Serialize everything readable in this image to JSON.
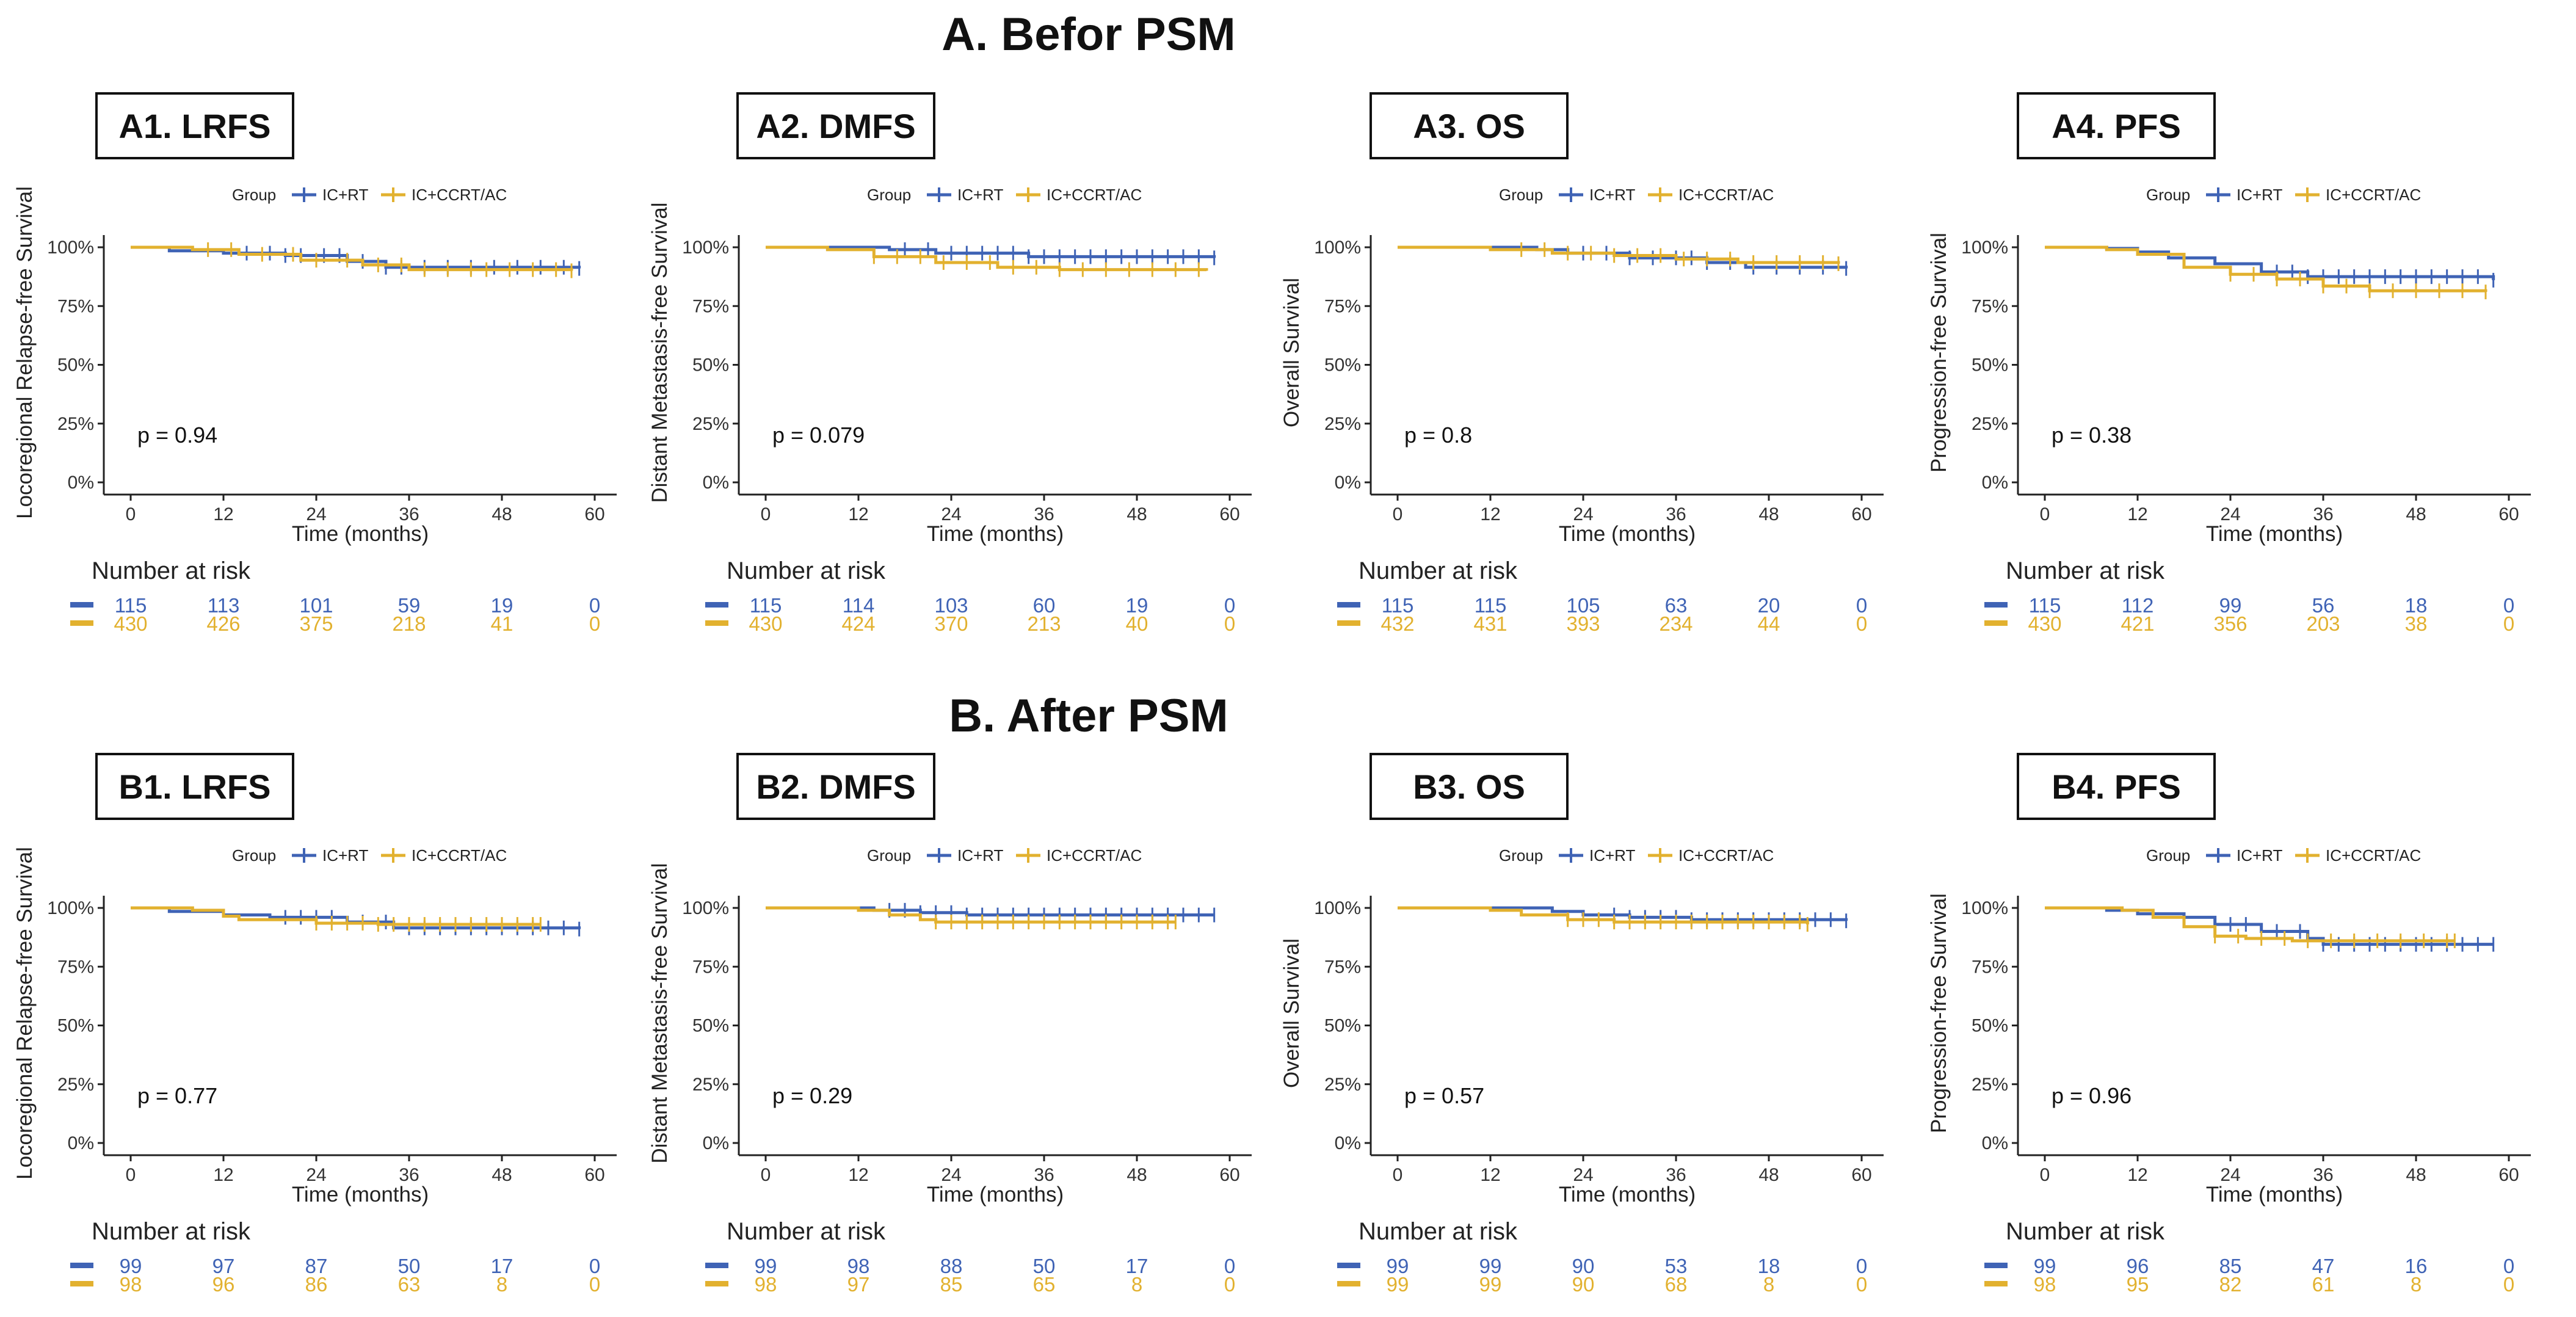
{
  "colors": {
    "ic_rt": "#3f63b5",
    "ic_ccrt_ac": "#e2b12f"
  },
  "sections": {
    "A": "A. Befor PSM",
    "B": "B. After PSM"
  },
  "legend": {
    "title": "Group",
    "series1": "IC+RT",
    "series2": "IC+CCRT/AC"
  },
  "risk_title": "Number at risk",
  "xlabel": "Time (months)",
  "x_ticks": [
    "0",
    "12",
    "24",
    "36",
    "48",
    "60"
  ],
  "y_ticks": [
    "0%",
    "25%",
    "50%",
    "75%",
    "100%"
  ],
  "chart_data": [
    {
      "type": "line",
      "panel": "A1. LRFS",
      "ylabel": "Locoregional Relapse-free Survival",
      "pvalue": "p = 0.94",
      "xlim": [
        0,
        60
      ],
      "ylim": [
        0,
        1
      ],
      "series": [
        {
          "name": "IC+RT",
          "points": [
            [
              0,
              1
            ],
            [
              5,
              0.985
            ],
            [
              12,
              0.975
            ],
            [
              20,
              0.965
            ],
            [
              28,
              0.94
            ],
            [
              33,
              0.915
            ],
            [
              58,
              0.91
            ]
          ],
          "censor": [
            15,
            18,
            20,
            22,
            25,
            27,
            30,
            33,
            35,
            38,
            41,
            44,
            47,
            50,
            53,
            56,
            58
          ]
        },
        {
          "name": "IC+CCRT/AC",
          "points": [
            [
              0,
              1
            ],
            [
              8,
              0.99
            ],
            [
              14,
              0.97
            ],
            [
              22,
              0.945
            ],
            [
              30,
              0.925
            ],
            [
              36,
              0.905
            ],
            [
              57,
              0.9
            ]
          ],
          "censor": [
            10,
            13,
            17,
            21,
            24,
            28,
            32,
            35,
            38,
            41,
            44,
            46,
            49,
            52,
            55,
            57
          ]
        }
      ],
      "risk": {
        "IC+RT": [
          "115",
          "113",
          "101",
          "59",
          "19",
          "0"
        ],
        "IC+CCRT/AC": [
          "430",
          "426",
          "375",
          "218",
          "41",
          "0"
        ]
      }
    },
    {
      "type": "line",
      "panel": "A2. DMFS",
      "ylabel": "Distant Metastasis-free Survival",
      "pvalue": "p = 0.079",
      "xlim": [
        0,
        60
      ],
      "ylim": [
        0,
        1
      ],
      "series": [
        {
          "name": "IC+RT",
          "points": [
            [
              0,
              1
            ],
            [
              10,
              1
            ],
            [
              16,
              0.99
            ],
            [
              22,
              0.975
            ],
            [
              34,
              0.96
            ],
            [
              58,
              0.955
            ]
          ],
          "censor": [
            18,
            21,
            24,
            26,
            28,
            30,
            32,
            34,
            36,
            38,
            40,
            42,
            44,
            46,
            48,
            50,
            52,
            54,
            56,
            58
          ]
        },
        {
          "name": "IC+CCRT/AC",
          "points": [
            [
              0,
              1
            ],
            [
              8,
              0.99
            ],
            [
              14,
              0.96
            ],
            [
              22,
              0.935
            ],
            [
              30,
              0.915
            ],
            [
              38,
              0.905
            ],
            [
              57,
              0.9
            ]
          ],
          "censor": [
            14,
            17,
            20,
            23,
            26,
            29,
            32,
            35,
            38,
            41,
            44,
            47,
            50,
            53,
            56
          ]
        }
      ],
      "risk": {
        "IC+RT": [
          "115",
          "114",
          "103",
          "60",
          "19",
          "0"
        ],
        "IC+CCRT/AC": [
          "430",
          "424",
          "370",
          "213",
          "40",
          "0"
        ]
      }
    },
    {
      "type": "line",
      "panel": "A3. OS",
      "ylabel": "Overall Survival",
      "pvalue": "p = 0.8",
      "xlim": [
        0,
        60
      ],
      "ylim": [
        0,
        1
      ],
      "series": [
        {
          "name": "IC+RT",
          "points": [
            [
              0,
              1
            ],
            [
              18,
              0.99
            ],
            [
              22,
              0.975
            ],
            [
              30,
              0.955
            ],
            [
              40,
              0.935
            ],
            [
              45,
              0.915
            ],
            [
              58,
              0.91
            ]
          ],
          "censor": [
            24,
            27,
            30,
            33,
            36,
            38,
            40,
            43,
            46,
            49,
            52,
            55,
            58
          ]
        },
        {
          "name": "IC+CCRT/AC",
          "points": [
            [
              0,
              1
            ],
            [
              12,
              0.99
            ],
            [
              20,
              0.975
            ],
            [
              28,
              0.965
            ],
            [
              36,
              0.95
            ],
            [
              44,
              0.935
            ],
            [
              57,
              0.93
            ]
          ],
          "censor": [
            16,
            19,
            22,
            25,
            28,
            31,
            34,
            37,
            40,
            43,
            46,
            49,
            52,
            55,
            57
          ]
        }
      ],
      "risk": {
        "IC+RT": [
          "115",
          "115",
          "105",
          "63",
          "20",
          "0"
        ],
        "IC+CCRT/AC": [
          "432",
          "431",
          "393",
          "234",
          "44",
          "0"
        ]
      }
    },
    {
      "type": "line",
      "panel": "A4. PFS",
      "ylabel": "Progression-free Survival",
      "pvalue": "p = 0.38",
      "xlim": [
        0,
        60
      ],
      "ylim": [
        0,
        1
      ],
      "series": [
        {
          "name": "IC+RT",
          "points": [
            [
              0,
              1
            ],
            [
              8,
              0.995
            ],
            [
              12,
              0.98
            ],
            [
              16,
              0.955
            ],
            [
              22,
              0.93
            ],
            [
              28,
              0.895
            ],
            [
              34,
              0.875
            ],
            [
              58,
              0.86
            ]
          ],
          "censor": [
            30,
            32,
            34,
            36,
            38,
            40,
            42,
            44,
            46,
            48,
            50,
            52,
            54,
            56,
            58
          ]
        },
        {
          "name": "IC+CCRT/AC",
          "points": [
            [
              0,
              1
            ],
            [
              8,
              0.99
            ],
            [
              12,
              0.97
            ],
            [
              18,
              0.915
            ],
            [
              24,
              0.885
            ],
            [
              30,
              0.865
            ],
            [
              36,
              0.835
            ],
            [
              42,
              0.815
            ],
            [
              57,
              0.81
            ]
          ],
          "censor": [
            24,
            27,
            30,
            33,
            36,
            39,
            42,
            45,
            48,
            51,
            54,
            57
          ]
        }
      ],
      "risk": {
        "IC+RT": [
          "115",
          "112",
          "99",
          "56",
          "18",
          "0"
        ],
        "IC+CCRT/AC": [
          "430",
          "421",
          "356",
          "203",
          "38",
          "0"
        ]
      }
    },
    {
      "type": "line",
      "panel": "B1. LRFS",
      "ylabel": "Locoregional Relapse-free Survival",
      "pvalue": "p = 0.77",
      "xlim": [
        0,
        60
      ],
      "ylim": [
        0,
        1
      ],
      "series": [
        {
          "name": "IC+RT",
          "points": [
            [
              0,
              1
            ],
            [
              5,
              0.985
            ],
            [
              12,
              0.97
            ],
            [
              18,
              0.96
            ],
            [
              28,
              0.94
            ],
            [
              34,
              0.915
            ],
            [
              58,
              0.91
            ]
          ],
          "censor": [
            20,
            22,
            24,
            26,
            30,
            33,
            36,
            38,
            40,
            42,
            44,
            46,
            48,
            50,
            52,
            54,
            56,
            58
          ]
        },
        {
          "name": "IC+CCRT/AC",
          "points": [
            [
              0,
              1
            ],
            [
              8,
              0.99
            ],
            [
              12,
              0.965
            ],
            [
              14,
              0.95
            ],
            [
              24,
              0.935
            ],
            [
              32,
              0.93
            ],
            [
              53,
              0.93
            ]
          ],
          "censor": [
            24,
            26,
            28,
            30,
            32,
            34,
            36,
            38,
            40,
            42,
            44,
            46,
            48,
            50,
            52,
            53
          ]
        }
      ],
      "risk": {
        "IC+RT": [
          "99",
          "97",
          "87",
          "50",
          "17",
          "0"
        ],
        "IC+CCRT/AC": [
          "98",
          "96",
          "86",
          "63",
          "8",
          "0"
        ]
      }
    },
    {
      "type": "line",
      "panel": "B2. DMFS",
      "ylabel": "Distant Metastasis-free Survival",
      "pvalue": "p = 0.29",
      "xlim": [
        0,
        60
      ],
      "ylim": [
        0,
        1
      ],
      "series": [
        {
          "name": "IC+RT",
          "points": [
            [
              0,
              1
            ],
            [
              12,
              1
            ],
            [
              14,
              0.99
            ],
            [
              20,
              0.98
            ],
            [
              26,
              0.97
            ],
            [
              58,
              0.97
            ]
          ],
          "censor": [
            16,
            18,
            20,
            22,
            24,
            26,
            28,
            30,
            32,
            34,
            36,
            38,
            40,
            42,
            44,
            46,
            48,
            50,
            52,
            54,
            56,
            58
          ]
        },
        {
          "name": "IC+CCRT/AC",
          "points": [
            [
              0,
              1
            ],
            [
              12,
              0.99
            ],
            [
              16,
              0.97
            ],
            [
              20,
              0.95
            ],
            [
              22,
              0.94
            ],
            [
              53,
              0.94
            ]
          ],
          "censor": [
            22,
            24,
            26,
            28,
            30,
            32,
            34,
            36,
            38,
            40,
            42,
            44,
            46,
            48,
            50,
            52,
            53
          ]
        }
      ],
      "risk": {
        "IC+RT": [
          "99",
          "98",
          "88",
          "50",
          "17",
          "0"
        ],
        "IC+CCRT/AC": [
          "98",
          "97",
          "85",
          "65",
          "8",
          "0"
        ]
      }
    },
    {
      "type": "line",
      "panel": "B3. OS",
      "ylabel": "Overall Survival",
      "pvalue": "p = 0.57",
      "xlim": [
        0,
        60
      ],
      "ylim": [
        0,
        1
      ],
      "series": [
        {
          "name": "IC+RT",
          "points": [
            [
              0,
              1
            ],
            [
              16,
              1
            ],
            [
              20,
              0.985
            ],
            [
              24,
              0.97
            ],
            [
              30,
              0.96
            ],
            [
              38,
              0.95
            ],
            [
              58,
              0.945
            ]
          ],
          "censor": [
            28,
            30,
            32,
            34,
            36,
            38,
            40,
            42,
            44,
            46,
            48,
            50,
            52,
            54,
            56,
            58
          ]
        },
        {
          "name": "IC+CCRT/AC",
          "points": [
            [
              0,
              1
            ],
            [
              12,
              0.99
            ],
            [
              16,
              0.97
            ],
            [
              22,
              0.95
            ],
            [
              28,
              0.94
            ],
            [
              53,
              0.93
            ]
          ],
          "censor": [
            22,
            24,
            26,
            28,
            30,
            32,
            34,
            36,
            38,
            40,
            42,
            44,
            46,
            48,
            50,
            52,
            53
          ]
        }
      ],
      "risk": {
        "IC+RT": [
          "99",
          "99",
          "90",
          "53",
          "18",
          "0"
        ],
        "IC+CCRT/AC": [
          "99",
          "99",
          "90",
          "68",
          "8",
          "0"
        ]
      }
    },
    {
      "type": "line",
      "panel": "B4. PFS",
      "ylabel": "Progression-free Survival",
      "pvalue": "p = 0.96",
      "xlim": [
        0,
        60
      ],
      "ylim": [
        0,
        1
      ],
      "series": [
        {
          "name": "IC+RT",
          "points": [
            [
              0,
              1
            ],
            [
              8,
              0.99
            ],
            [
              12,
              0.975
            ],
            [
              18,
              0.96
            ],
            [
              22,
              0.93
            ],
            [
              28,
              0.9
            ],
            [
              34,
              0.87
            ],
            [
              36,
              0.845
            ],
            [
              58,
              0.845
            ]
          ],
          "censor": [
            24,
            26,
            30,
            33,
            36,
            38,
            40,
            42,
            44,
            46,
            48,
            50,
            52,
            54,
            56,
            58
          ]
        },
        {
          "name": "IC+CCRT/AC",
          "points": [
            [
              0,
              1
            ],
            [
              10,
              0.99
            ],
            [
              14,
              0.96
            ],
            [
              18,
              0.92
            ],
            [
              22,
              0.88
            ],
            [
              26,
              0.87
            ],
            [
              32,
              0.86
            ],
            [
              53,
              0.86
            ]
          ],
          "censor": [
            22,
            25,
            28,
            31,
            34,
            37,
            40,
            43,
            46,
            49,
            52,
            53
          ]
        }
      ],
      "risk": {
        "IC+RT": [
          "99",
          "96",
          "85",
          "47",
          "16",
          "0"
        ],
        "IC+CCRT/AC": [
          "98",
          "95",
          "82",
          "61",
          "8",
          "0"
        ]
      }
    }
  ]
}
